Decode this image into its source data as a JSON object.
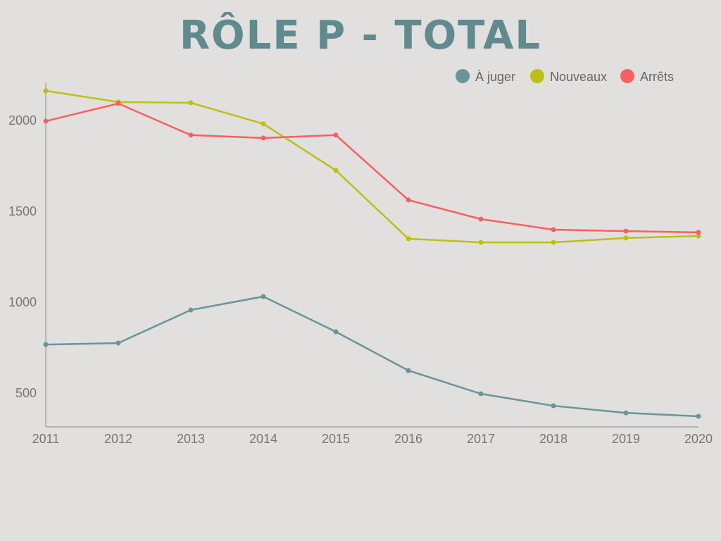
{
  "chart_data": {
    "type": "line",
    "title": "RÔLE P - TOTAL",
    "xlabel": "",
    "ylabel": "",
    "x": [
      "2011",
      "2012",
      "2013",
      "2014",
      "2015",
      "2016",
      "2017",
      "2018",
      "2019",
      "2020"
    ],
    "ylim": [
      314,
      2205
    ],
    "yticks": [
      500,
      1000,
      1500,
      2000
    ],
    "grid": false,
    "legend_position": "top-right",
    "series": [
      {
        "name": "À juger",
        "color": "#6a9499",
        "values": [
          767,
          775,
          957,
          1031,
          837,
          624,
          496,
          430,
          391,
          372
        ]
      },
      {
        "name": "Nouveaux",
        "color": "#bcc012",
        "values": [
          2163,
          2101,
          2097,
          1981,
          1725,
          1349,
          1329,
          1329,
          1353,
          1364
        ]
      },
      {
        "name": "Arrêts",
        "color": "#fa5f5f",
        "values": [
          1996,
          2093,
          1919,
          1903,
          1919,
          1562,
          1457,
          1399,
          1391,
          1384
        ]
      }
    ]
  }
}
